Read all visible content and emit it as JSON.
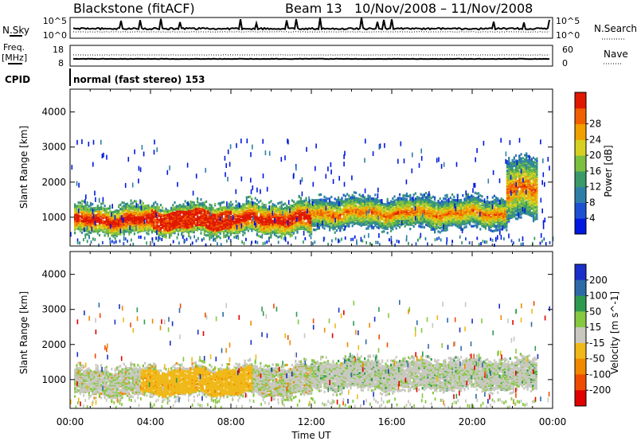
{
  "header": {
    "station": "Blackstone (fitACF)",
    "beam": "Beam 13",
    "date_range": "10/Nov/2008 – 11/Nov/2008"
  },
  "aux_panels": {
    "nsky_label": "N.Sky",
    "nsky_ticks": [
      "10^5",
      "10^0"
    ],
    "nsearch_label": "N.Search",
    "nsearch_ticks": [
      "10^5",
      "10^0"
    ],
    "freq_label": "Freq.",
    "freq_unit": "[MHz]",
    "freq_ticks": [
      "18",
      "8"
    ],
    "nave_label": "Nave",
    "nave_ticks": [
      "60",
      "0"
    ],
    "cpid_label": "CPID",
    "cpid_text": "normal (fast stereo) 153"
  },
  "chart_data": [
    {
      "type": "heatmap",
      "name_label": "power",
      "xlabel": "Time UT",
      "ylabel": "Slant Range [km]",
      "x_ticks": [
        "00:00",
        "04:00",
        "08:00",
        "12:00",
        "16:00",
        "20:00",
        "00:00"
      ],
      "x_range_hours": [
        0,
        24
      ],
      "y_ticks": [
        1000,
        2000,
        3000,
        4000
      ],
      "ylim": [
        180,
        4650
      ],
      "colorbar": {
        "label": "Power [dB]",
        "ticks": [
          "4",
          "8",
          "12",
          "16",
          "20",
          "24",
          "28"
        ],
        "range": [
          0,
          31
        ],
        "colors": [
          "#0018e0",
          "#1e50d2",
          "#2e7fa8",
          "#3a9a6a",
          "#7cc040",
          "#d6d020",
          "#f0a000",
          "#f06000",
          "#e01800"
        ]
      },
      "echo_bands": [
        {
          "t0": 0.2,
          "t1": 12.0,
          "r0": 560,
          "r1": 1250,
          "value_level": "strong"
        },
        {
          "t0": 12.0,
          "t1": 21.7,
          "r0": 750,
          "r1": 1500,
          "value_level": "medium"
        },
        {
          "t0": 21.7,
          "t1": 23.2,
          "r0": 1000,
          "r1": 2600,
          "value_level": "medium"
        }
      ]
    },
    {
      "type": "heatmap",
      "name_label": "velocity",
      "xlabel": "Time UT",
      "ylabel": "Slant Range [km]",
      "x_ticks": [
        "00:00",
        "04:00",
        "08:00",
        "12:00",
        "16:00",
        "20:00",
        "00:00"
      ],
      "x_range_hours": [
        0,
        24
      ],
      "y_ticks": [
        1000,
        2000,
        3000,
        4000
      ],
      "ylim": [
        180,
        4650
      ],
      "colorbar": {
        "label": "Velocity [m s^-1]",
        "ticks": [
          "200",
          "100",
          "50",
          "15",
          "-15",
          "-50",
          "-100",
          "-200"
        ],
        "colors": [
          "#1a30c8",
          "#2e6aa8",
          "#2e9a50",
          "#86c840",
          "#c8c8c0",
          "#f0b818",
          "#f08800",
          "#f04c00",
          "#e00000"
        ]
      },
      "echo_bands": [
        {
          "t0": 0.2,
          "t1": 12.0,
          "r0": 560,
          "r1": 1250,
          "value_level": "negative"
        },
        {
          "t0": 12.0,
          "t1": 23.2,
          "r0": 750,
          "r1": 1500,
          "value_level": "near-zero"
        }
      ]
    }
  ]
}
